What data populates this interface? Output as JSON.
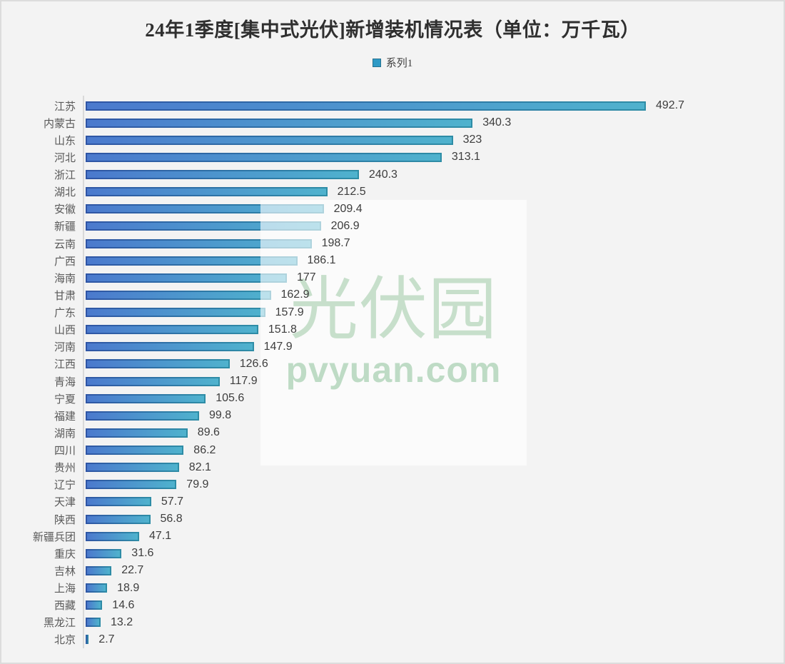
{
  "title": "24年1季度[集中式光伏]新增装机情况表（单位：万千瓦）",
  "legend": {
    "series_label": "系列1",
    "marker_color": "#2f9ac6"
  },
  "watermark": {
    "name_text": "光伏园",
    "site_text": "pvyuan.com",
    "text_color": "#c7dfcb"
  },
  "colors": {
    "background": "#f3f3f3",
    "frame_border": "#dcdcdc",
    "axis_line": "#d9d9d9",
    "bar_fill_start": "#4b79cd",
    "bar_fill_end": "#4fb2cd",
    "bar_border_start": "#2f55a5",
    "bar_border_end": "#2e8da6",
    "category_label": "#595959",
    "value_label": "#3d3d3d",
    "title_color": "#2f2f2f"
  },
  "chart_data": {
    "type": "bar",
    "orientation": "horizontal",
    "title": "24年1季度[集中式光伏]新增装机情况表（单位：万千瓦）",
    "unit": "万千瓦",
    "series_name": "系列1",
    "legend_position": "top",
    "grid": false,
    "sorted": "descending",
    "categories": [
      "江苏",
      "内蒙古",
      "山东",
      "河北",
      "浙江",
      "湖北",
      "安徽",
      "新疆",
      "云南",
      "广西",
      "海南",
      "甘肃",
      "广东",
      "山西",
      "河南",
      "江西",
      "青海",
      "宁夏",
      "福建",
      "湖南",
      "四川",
      "贵州",
      "辽宁",
      "天津",
      "陕西",
      "新疆兵团",
      "重庆",
      "吉林",
      "上海",
      "西藏",
      "黑龙江",
      "北京"
    ],
    "values": [
      492.7,
      340.3,
      323,
      313.1,
      240.3,
      212.5,
      209.4,
      206.9,
      198.7,
      186.1,
      177,
      162.9,
      157.9,
      151.8,
      147.9,
      126.6,
      117.9,
      105.6,
      99.8,
      89.6,
      86.2,
      82.1,
      79.9,
      57.7,
      56.8,
      47.1,
      31.6,
      22.7,
      18.9,
      14.6,
      13.2,
      2.7
    ],
    "value_labels": [
      "492.7",
      "340.3",
      "323",
      "313.1",
      "240.3",
      "212.5",
      "209.4",
      "206.9",
      "198.7",
      "186.1",
      "177",
      "162.9",
      "157.9",
      "151.8",
      "147.9",
      "126.6",
      "117.9",
      "105.6",
      "99.8",
      "89.6",
      "86.2",
      "82.1",
      "79.9",
      "57.7",
      "56.8",
      "47.1",
      "31.6",
      "22.7",
      "18.9",
      "14.6",
      "13.2",
      "2.7"
    ]
  }
}
